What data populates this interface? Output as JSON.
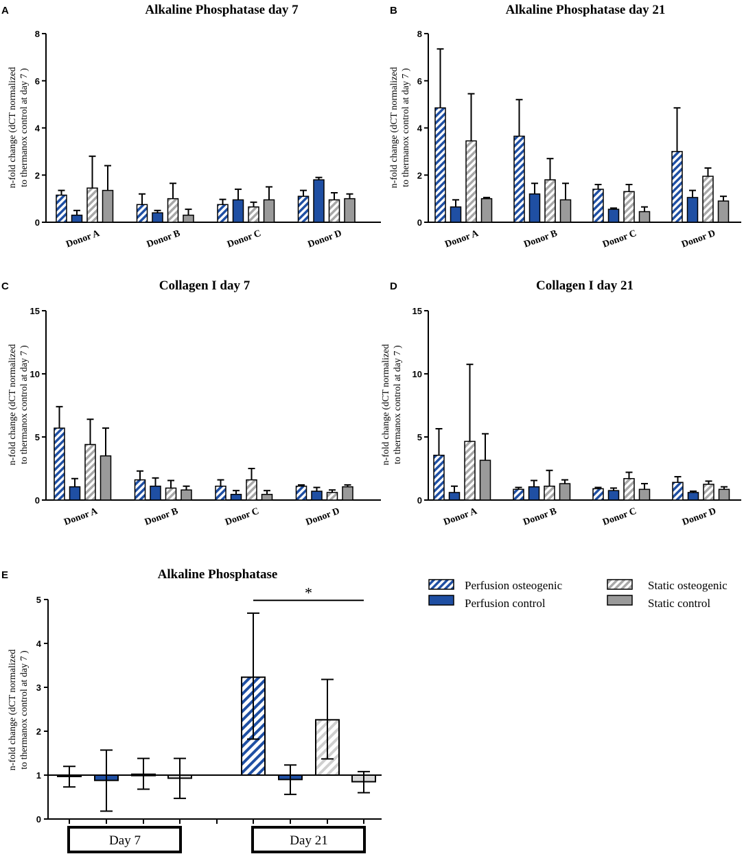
{
  "colors": {
    "perfusion_blue": "#1f4fa3",
    "static_gray": "#9a9a9a",
    "hatch_gray": "#a8a8a8",
    "light_hatch": "#cfcfcf",
    "light_fill": "#d8d8d8"
  },
  "legend": {
    "perfusion_osteogenic": "Perfusion osteogenic",
    "perfusion_control": "Perfusion control",
    "static_osteogenic": "Static osteogenic",
    "static_control": "Static control"
  },
  "panel_e_groups": {
    "day7": "Day 7",
    "day21": "Day 21"
  },
  "chart_data": [
    {
      "panel": "A",
      "type": "bar",
      "title": "Alkaline Phosphatase day 7",
      "ylabel_line1": "n-fold change (dCT normalized",
      "ylabel_line2": "to thermanox control at day 7 )",
      "ylim": [
        0,
        8
      ],
      "yticks": [
        0,
        2,
        4,
        6,
        8
      ],
      "categories": [
        "Donor A",
        "Donor B",
        "Donor C",
        "Donor D"
      ],
      "series": [
        {
          "name": "Perfusion osteogenic",
          "values": [
            1.15,
            0.75,
            0.75,
            1.1
          ],
          "errors": [
            0.2,
            0.45,
            0.22,
            0.25
          ]
        },
        {
          "name": "Perfusion control",
          "values": [
            0.3,
            0.4,
            0.95,
            1.8
          ],
          "errors": [
            0.2,
            0.1,
            0.45,
            0.1
          ]
        },
        {
          "name": "Static osteogenic",
          "values": [
            1.45,
            1.0,
            0.65,
            0.95
          ],
          "errors": [
            1.35,
            0.65,
            0.2,
            0.3
          ]
        },
        {
          "name": "Static control",
          "values": [
            1.35,
            0.3,
            0.95,
            1.0
          ],
          "errors": [
            1.05,
            0.25,
            0.55,
            0.2
          ]
        }
      ]
    },
    {
      "panel": "B",
      "type": "bar",
      "title": "Alkaline Phosphatase day 21",
      "ylabel_line1": "n-fold change (dCT normalized",
      "ylabel_line2": "to thermanox control at day 7 )",
      "ylim": [
        0,
        8
      ],
      "yticks": [
        0,
        2,
        4,
        6,
        8
      ],
      "categories": [
        "Donor A",
        "Donor B",
        "Donor C",
        "Donor D"
      ],
      "series": [
        {
          "name": "Perfusion osteogenic",
          "values": [
            4.85,
            3.65,
            1.4,
            3.0
          ],
          "errors": [
            2.5,
            1.55,
            0.2,
            1.85
          ]
        },
        {
          "name": "Perfusion control",
          "values": [
            0.65,
            1.2,
            0.55,
            1.05
          ],
          "errors": [
            0.3,
            0.45,
            0.05,
            0.3
          ]
        },
        {
          "name": "Static osteogenic",
          "values": [
            3.45,
            1.8,
            1.3,
            1.95
          ],
          "errors": [
            2.0,
            0.9,
            0.3,
            0.35
          ]
        },
        {
          "name": "Static control",
          "values": [
            1.0,
            0.95,
            0.45,
            0.9
          ],
          "errors": [
            0.05,
            0.7,
            0.2,
            0.2
          ]
        }
      ]
    },
    {
      "panel": "C",
      "type": "bar",
      "title": "Collagen I day 7",
      "ylabel_line1": "n-fold change (dCT normalized",
      "ylabel_line2": "to thermanox control at day 7 )",
      "ylim": [
        0,
        15
      ],
      "yticks": [
        0,
        5,
        10,
        15
      ],
      "categories": [
        "Donor A",
        "Donor B",
        "Donor C",
        "Donor D"
      ],
      "series": [
        {
          "name": "Perfusion osteogenic",
          "values": [
            5.7,
            1.6,
            1.1,
            1.1
          ],
          "errors": [
            1.7,
            0.7,
            0.5,
            0.1
          ]
        },
        {
          "name": "Perfusion control",
          "values": [
            1.05,
            1.1,
            0.45,
            0.7
          ],
          "errors": [
            0.65,
            0.65,
            0.3,
            0.3
          ]
        },
        {
          "name": "Static osteogenic",
          "values": [
            4.4,
            0.95,
            1.6,
            0.6
          ],
          "errors": [
            2.0,
            0.6,
            0.9,
            0.2
          ]
        },
        {
          "name": "Static control",
          "values": [
            3.5,
            0.8,
            0.45,
            1.05
          ],
          "errors": [
            2.2,
            0.3,
            0.3,
            0.15
          ]
        }
      ]
    },
    {
      "panel": "D",
      "type": "bar",
      "title": "Collagen I day 21",
      "ylabel_line1": "n-fold change (dCT normalized",
      "ylabel_line2": "to thermanox control at day 7 )",
      "ylim": [
        0,
        15
      ],
      "yticks": [
        0,
        5,
        10,
        15
      ],
      "categories": [
        "Donor A",
        "Donor B",
        "Donor C",
        "Donor D"
      ],
      "series": [
        {
          "name": "Perfusion osteogenic",
          "values": [
            3.55,
            0.85,
            0.9,
            1.4
          ],
          "errors": [
            2.1,
            0.15,
            0.1,
            0.45
          ]
        },
        {
          "name": "Perfusion control",
          "values": [
            0.6,
            1.05,
            0.75,
            0.6
          ],
          "errors": [
            0.5,
            0.5,
            0.2,
            0.1
          ]
        },
        {
          "name": "Static osteogenic",
          "values": [
            4.65,
            1.1,
            1.7,
            1.25
          ],
          "errors": [
            6.1,
            1.25,
            0.5,
            0.25
          ]
        },
        {
          "name": "Static control",
          "values": [
            3.15,
            1.3,
            0.85,
            0.85
          ],
          "errors": [
            2.1,
            0.3,
            0.45,
            0.2
          ]
        }
      ]
    },
    {
      "panel": "E",
      "type": "bar",
      "title": "Alkaline Phosphatase",
      "ylabel_line1": "n-fold change (dCT normalized",
      "ylabel_line2": "to thermanox control at day 7 )",
      "ylim": [
        0,
        5
      ],
      "yticks": [
        0,
        1,
        2,
        3,
        4,
        5
      ],
      "baseline": 1,
      "groups": [
        "Day 7",
        "Day 21"
      ],
      "bars": [
        {
          "group": "Day 7",
          "series": "Perfusion osteogenic",
          "value": 0.98,
          "err_low": 0.73,
          "err_high": 1.2
        },
        {
          "group": "Day 7",
          "series": "Perfusion control",
          "value": 0.88,
          "err_low": 0.18,
          "err_high": 1.57
        },
        {
          "group": "Day 7",
          "series": "Static osteogenic",
          "value": 1.02,
          "err_low": 0.68,
          "err_high": 1.38
        },
        {
          "group": "Day 7",
          "series": "Static control",
          "value": 0.93,
          "err_low": 0.47,
          "err_high": 1.38
        },
        {
          "group": "Day 21",
          "series": "Perfusion osteogenic",
          "value": 3.23,
          "err_low": 1.82,
          "err_high": 4.69
        },
        {
          "group": "Day 21",
          "series": "Perfusion control",
          "value": 0.9,
          "err_low": 0.56,
          "err_high": 1.23
        },
        {
          "group": "Day 21",
          "series": "Static osteogenic",
          "value": 2.26,
          "err_low": 1.37,
          "err_high": 3.18
        },
        {
          "group": "Day 21",
          "series": "Static control",
          "value": 0.85,
          "err_low": 0.6,
          "err_high": 1.08
        }
      ],
      "significance": {
        "label": "*",
        "from_bar": 4,
        "to_bar": 7,
        "y": 4.98
      }
    }
  ]
}
